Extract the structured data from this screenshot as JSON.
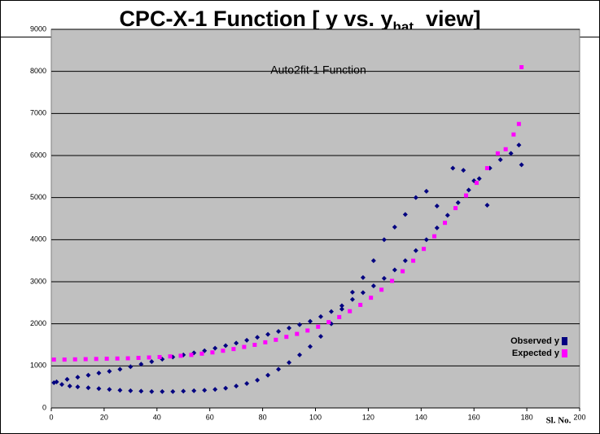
{
  "chart_data": {
    "type": "scatter",
    "title": "CPC-X-1 Function [ y vs. y",
    "title_subscript": "hat",
    "title_end": "view]",
    "subtitle": "Auto2fit-1 Function",
    "x_label": "Sl. No.",
    "xlim": [
      0,
      200
    ],
    "xticks": [
      0,
      20,
      40,
      60,
      80,
      100,
      120,
      140,
      160,
      180,
      200
    ],
    "ylim": [
      0,
      9000
    ],
    "yticks": [
      0,
      1000,
      2000,
      3000,
      4000,
      5000,
      6000,
      7000,
      8000,
      9000
    ],
    "grid": true,
    "legend": "right",
    "series": [
      {
        "name": "Observed y",
        "color": "#000080",
        "x": [
          1,
          4,
          7,
          10,
          14,
          18,
          22,
          26,
          30,
          34,
          38,
          42,
          46,
          50,
          54,
          58,
          62,
          66,
          70,
          74,
          78,
          82,
          86,
          90,
          94,
          98,
          102,
          106,
          110,
          114,
          118,
          122,
          126,
          130,
          134,
          138,
          142,
          146,
          152,
          156,
          2,
          6,
          10,
          14,
          18,
          22,
          26,
          30,
          34,
          38,
          42,
          46,
          50,
          54,
          58,
          62,
          66,
          70,
          74,
          78,
          82,
          86,
          90,
          94,
          98,
          102,
          106,
          110,
          114,
          118,
          122,
          126,
          130,
          134,
          138,
          142,
          146,
          150,
          154,
          158,
          162,
          166,
          170,
          174,
          177,
          178,
          165,
          160
        ],
        "values": [
          600,
          560,
          520,
          500,
          480,
          460,
          440,
          420,
          410,
          400,
          390,
          390,
          390,
          400,
          410,
          420,
          440,
          470,
          520,
          580,
          660,
          780,
          920,
          1080,
          1260,
          1460,
          1700,
          2000,
          2350,
          2750,
          3100,
          3500,
          4000,
          4300,
          4600,
          5000,
          5150,
          4800,
          5700,
          5650,
          620,
          680,
          730,
          780,
          830,
          870,
          920,
          980,
          1040,
          1100,
          1160,
          1210,
          1260,
          1310,
          1360,
          1420,
          1480,
          1540,
          1610,
          1680,
          1750,
          1820,
          1900,
          1980,
          2060,
          2170,
          2290,
          2430,
          2580,
          2740,
          2900,
          3080,
          3280,
          3500,
          3740,
          4000,
          4280,
          4580,
          4880,
          5180,
          5450,
          5700,
          5900,
          6050,
          6250,
          5780,
          4820,
          5400
        ]
      },
      {
        "name": "Expected y",
        "color": "#ff00ff",
        "x": [
          1,
          5,
          9,
          13,
          17,
          21,
          25,
          29,
          33,
          37,
          41,
          45,
          49,
          53,
          57,
          61,
          65,
          69,
          73,
          77,
          81,
          85,
          89,
          93,
          97,
          101,
          105,
          109,
          113,
          117,
          121,
          125,
          129,
          133,
          137,
          141,
          145,
          149,
          153,
          157,
          161,
          165,
          169,
          172,
          175,
          177,
          178
        ],
        "values": [
          1150,
          1150,
          1155,
          1160,
          1165,
          1170,
          1175,
          1180,
          1190,
          1200,
          1210,
          1225,
          1240,
          1260,
          1290,
          1320,
          1360,
          1400,
          1450,
          1500,
          1560,
          1620,
          1690,
          1760,
          1840,
          1930,
          2040,
          2160,
          2300,
          2450,
          2620,
          2810,
          3020,
          3250,
          3500,
          3780,
          4080,
          4400,
          4750,
          5050,
          5350,
          5700,
          6050,
          6150,
          6500,
          6750,
          8100
        ]
      }
    ]
  }
}
